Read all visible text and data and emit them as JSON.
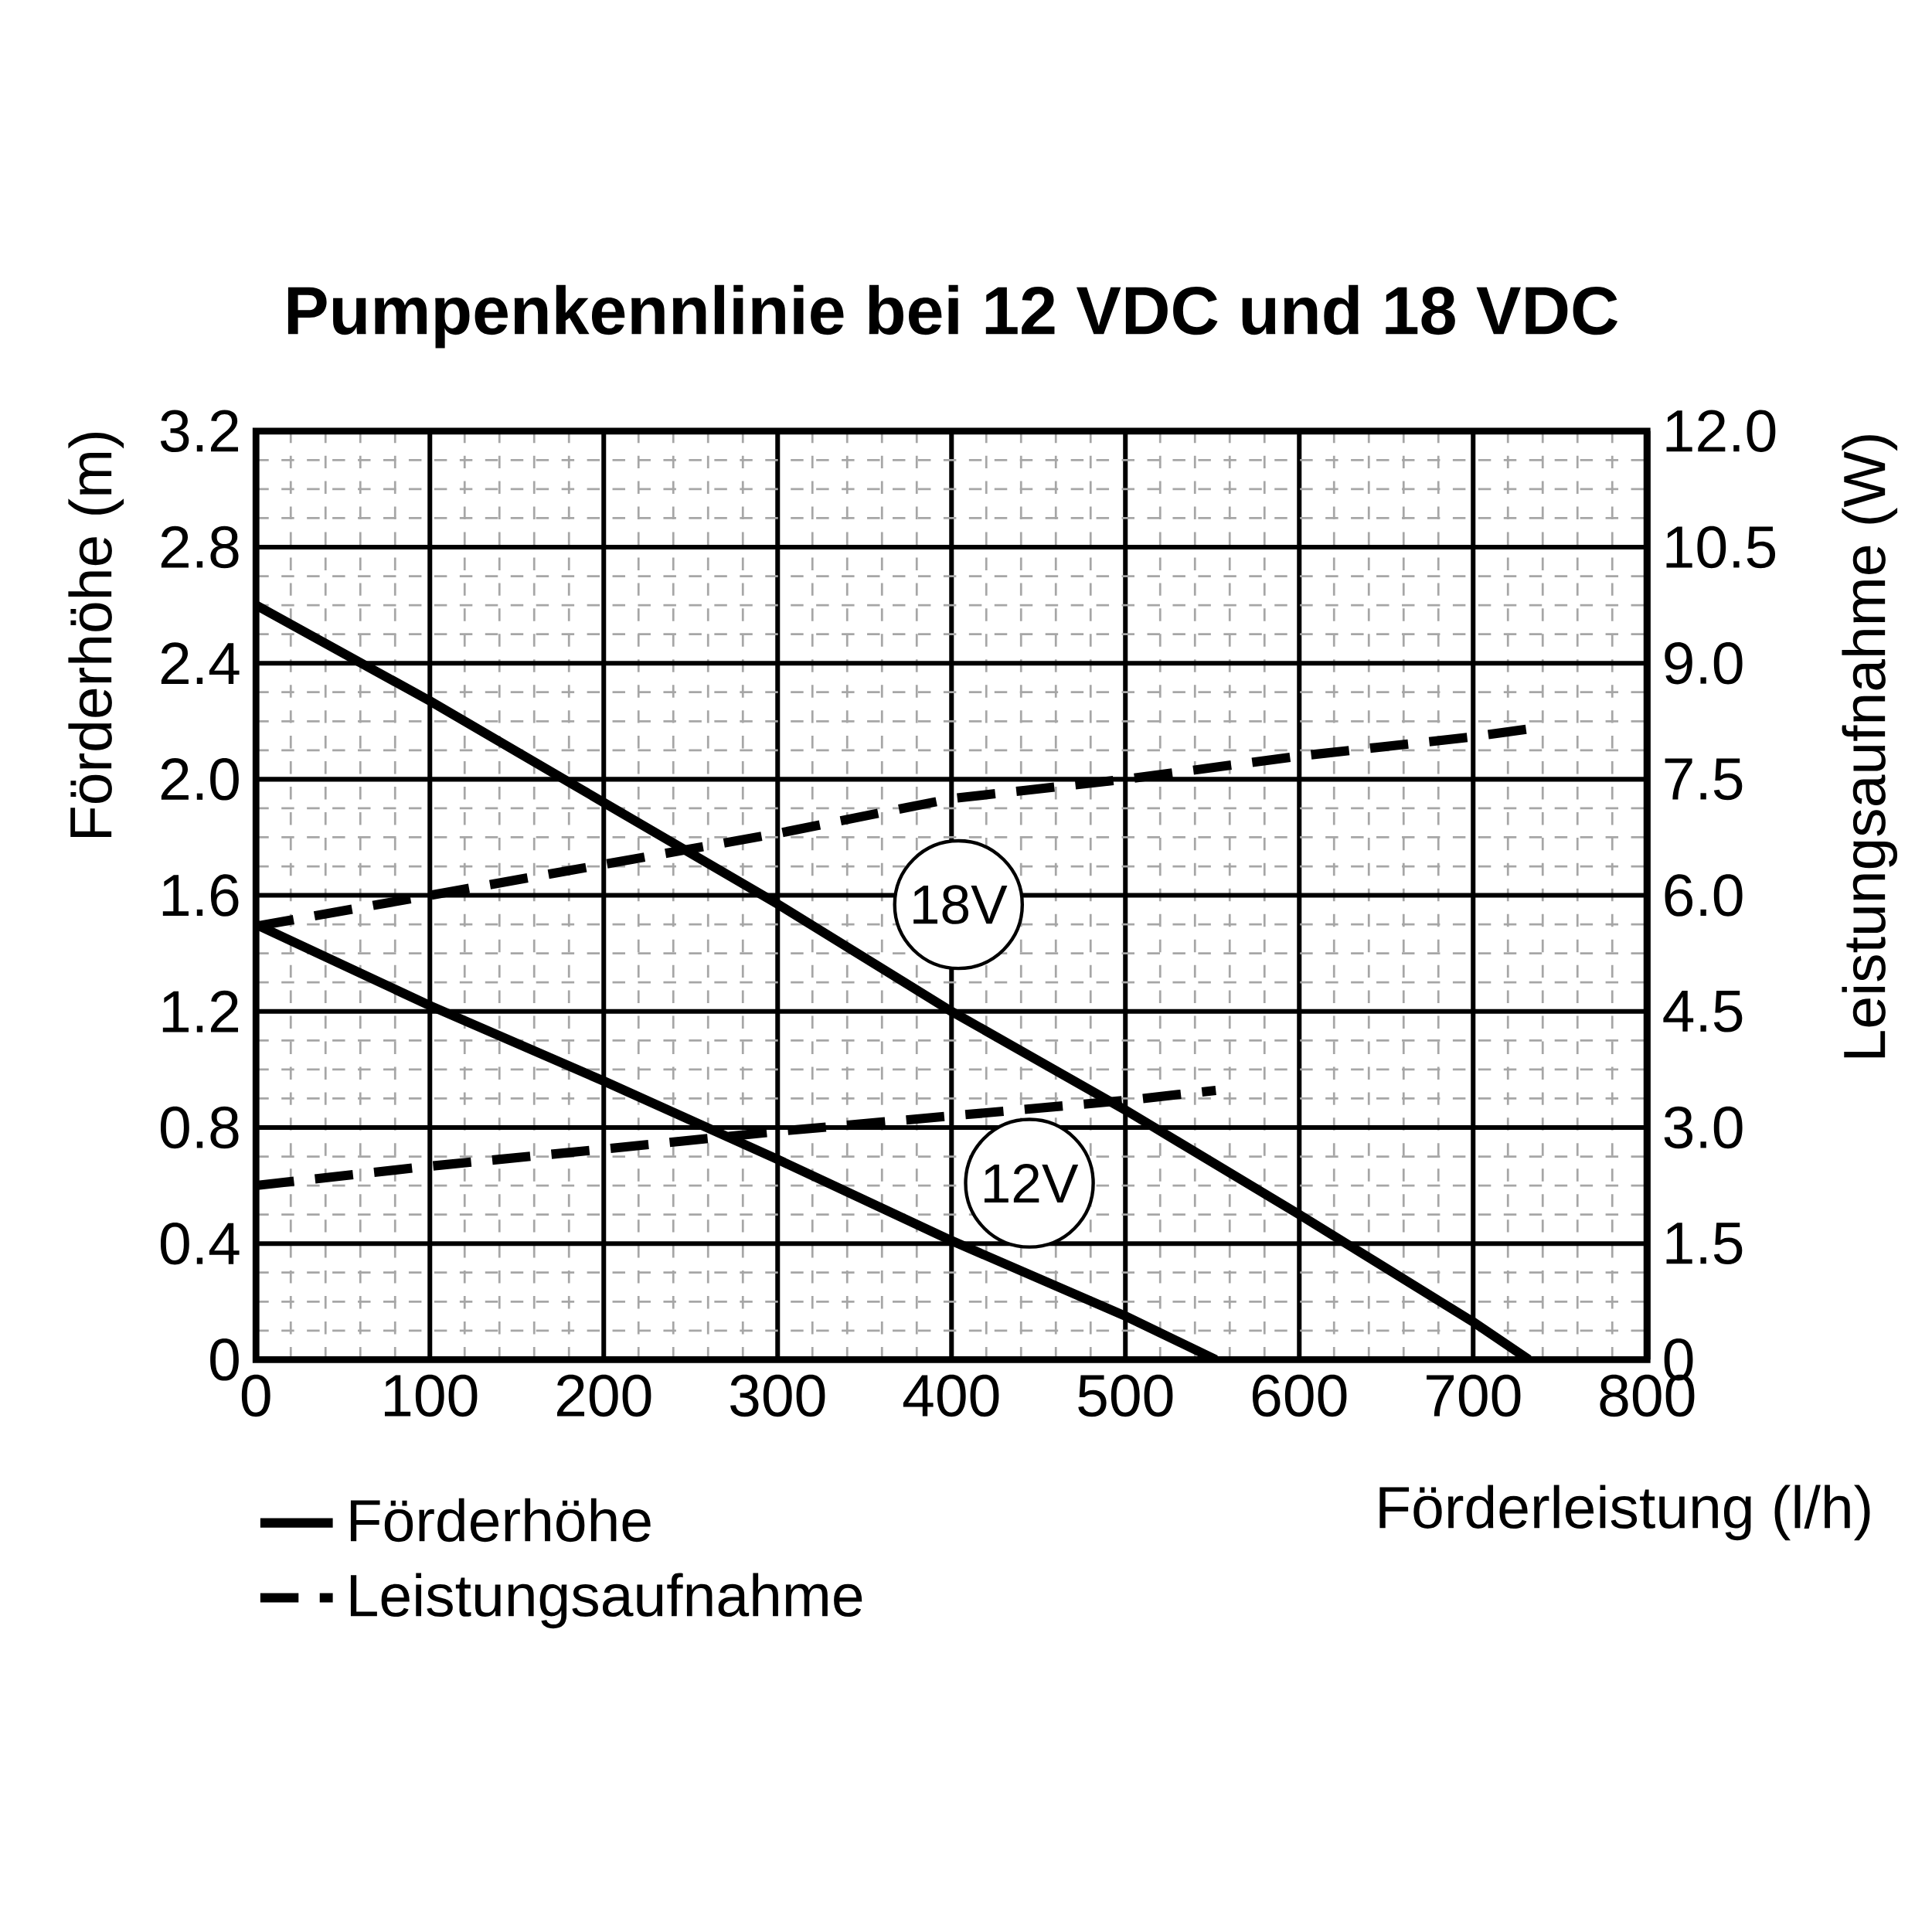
{
  "chart_data": {
    "type": "line",
    "title": "Pumpenkennlinie bei 12 VDC und 18 VDC",
    "xlabel": "Förderleistung (l/h)",
    "ylabel": "Förderhöhe (m)",
    "y2label": "Leistungsaufnahme (W)",
    "xlim": [
      0,
      800
    ],
    "xticks": [
      0,
      100,
      200,
      300,
      400,
      500,
      600,
      700,
      800
    ],
    "ylim": [
      0,
      3.2
    ],
    "yticks": [
      0,
      0.4,
      0.8,
      1.2,
      1.6,
      {
        "value": 2,
        "label": "2.0"
      },
      2.4,
      2.8,
      3.2
    ],
    "y2lim": [
      0,
      12
    ],
    "y2ticks": [
      0,
      1.5,
      {
        "value": 3,
        "label": "3.0"
      },
      4.5,
      {
        "value": 6,
        "label": "6.0"
      },
      7.5,
      {
        "value": 9,
        "label": "9.0"
      },
      10.5,
      {
        "value": 12,
        "label": "12.0"
      }
    ],
    "grid": true,
    "legend": "bottom left",
    "marker": "none",
    "series": [
      {
        "name": "Förderhöhe",
        "color": "#000000",
        "line_style": "solid",
        "x": [
          0,
          100,
          200,
          300,
          400,
          500,
          600,
          700,
          732
        ],
        "values": [
          2.6,
          2.27,
          1.92,
          1.57,
          1.2,
          0.86,
          0.5,
          0.13,
          0
        ]
      },
      {
        "color": "#000000",
        "line_style": "solid",
        "x": [
          0,
          100,
          200,
          300,
          400,
          500,
          552
        ],
        "values": [
          1.5,
          1.22,
          0.96,
          0.69,
          0.41,
          0.15,
          0
        ]
      },
      {
        "name": "Leistungsaufnahme",
        "color": "#000000",
        "line_style": "dashed",
        "axis": "y2",
        "x": [
          0,
          100,
          200,
          300,
          400,
          500,
          600,
          700,
          732
        ],
        "values": [
          5.6,
          6.0,
          6.4,
          6.8,
          7.25,
          7.5,
          7.8,
          8.05,
          8.15
        ]
      },
      {
        "color": "#000000",
        "line_style": "dashed",
        "axis": "y2",
        "x": [
          0,
          100,
          200,
          300,
          400,
          500,
          552
        ],
        "values": [
          2.25,
          2.5,
          2.72,
          2.95,
          3.15,
          3.35,
          3.48
        ]
      }
    ],
    "annotations": [
      "18V",
      "12V"
    ]
  }
}
